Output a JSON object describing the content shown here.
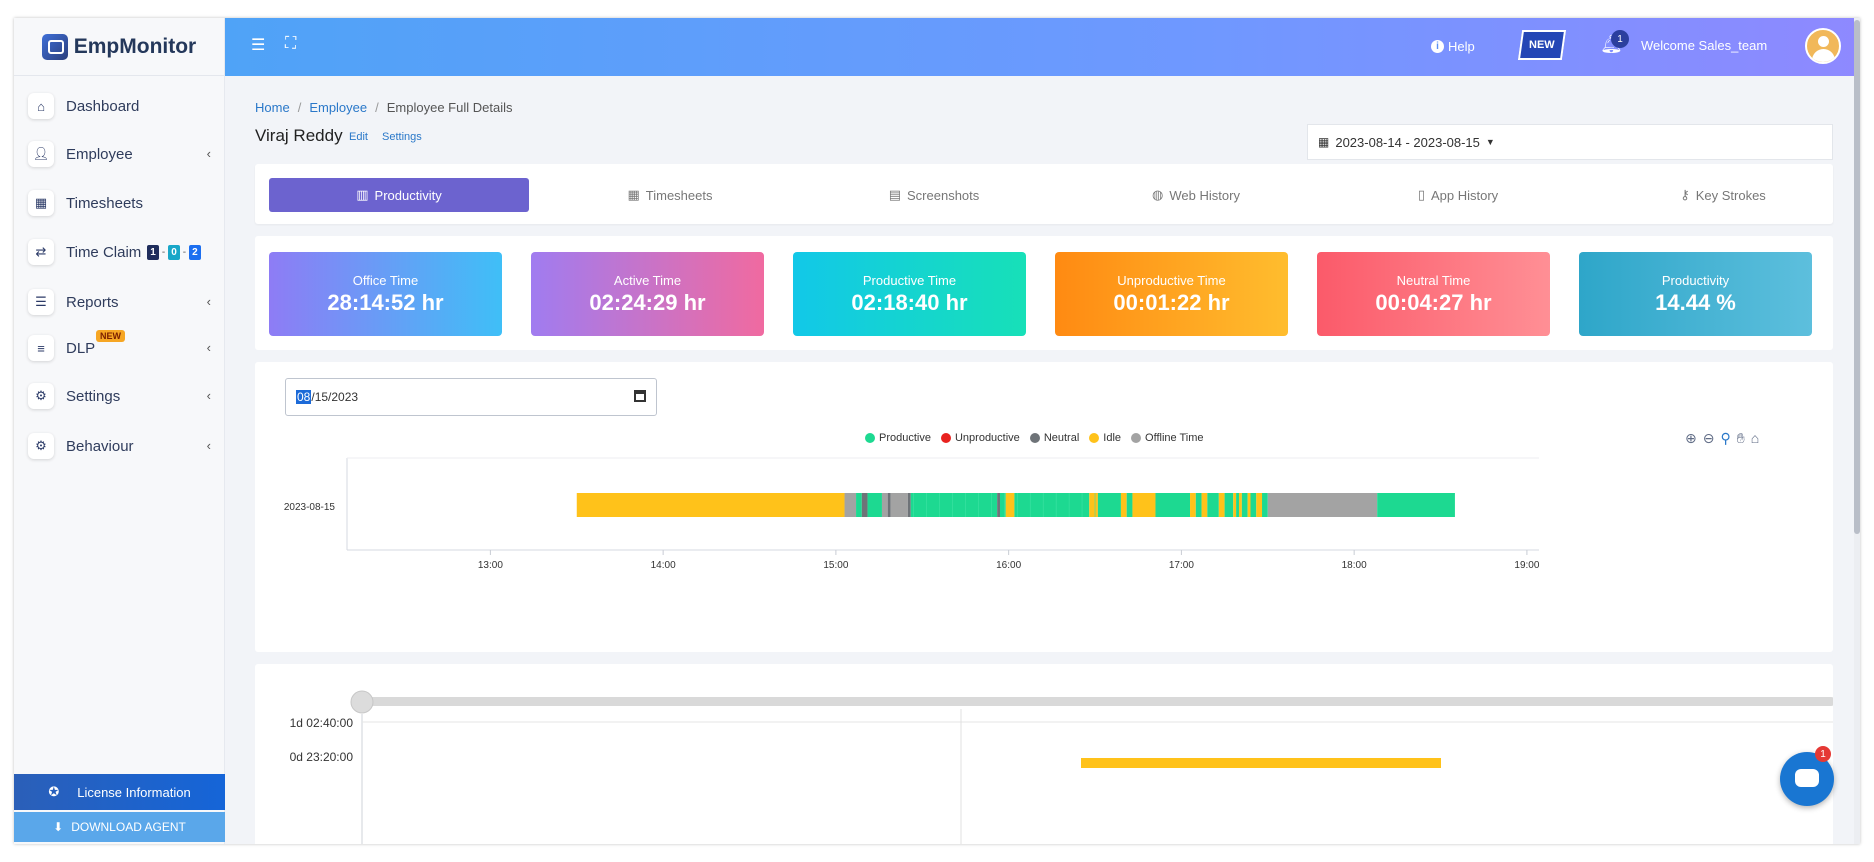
{
  "app": {
    "logo_text": "EmpMonitor"
  },
  "sidebar": {
    "items": [
      {
        "label": "Dashboard",
        "icon": "home-icon"
      },
      {
        "label": "Employee",
        "icon": "employee-icon",
        "caret": "‹"
      },
      {
        "label": "Timesheets",
        "icon": "calendar-icon"
      },
      {
        "label": "Time Claim",
        "icon": "swap-icon",
        "badges": [
          "1",
          "0",
          "2"
        ]
      },
      {
        "label": "Reports",
        "icon": "report-icon",
        "caret": "‹"
      },
      {
        "label": "DLP",
        "icon": "sliders-icon",
        "caret": "‹",
        "tag": "NEW"
      },
      {
        "label": "Settings",
        "icon": "gear-icon",
        "caret": "‹"
      },
      {
        "label": "Behaviour",
        "icon": "user-gear-icon",
        "caret": "‹"
      }
    ],
    "license_label": "License Information",
    "download_label": "DOWNLOAD AGENT"
  },
  "header": {
    "help_label": "Help",
    "new_label": "NEW",
    "notification_count": "1",
    "welcome": "Welcome  Sales_team"
  },
  "page": {
    "breadcrumb": [
      "Home",
      "Employee",
      "Employee Full Details"
    ],
    "employee_name": "Viraj Reddy",
    "edit_label": "Edit",
    "settings_label": "Settings",
    "date_range": "2023-08-14 - 2023-08-15"
  },
  "tabs": [
    {
      "label": "Productivity",
      "icon": "bar-chart-icon",
      "active": true
    },
    {
      "label": "Timesheets",
      "icon": "calendar-icon"
    },
    {
      "label": "Screenshots",
      "icon": "images-icon"
    },
    {
      "label": "Web History",
      "icon": "globe-icon"
    },
    {
      "label": "App History",
      "icon": "mobile-icon"
    },
    {
      "label": "Key Strokes",
      "icon": "key-icon"
    }
  ],
  "stats": [
    {
      "label": "Office Time",
      "value": "28:14:52 hr",
      "colors": [
        "#8e7cf5",
        "#3fbff7"
      ]
    },
    {
      "label": "Active Time",
      "value": "02:24:29 hr",
      "colors": [
        "#a07cf0",
        "#f06aa0"
      ]
    },
    {
      "label": "Productive Time",
      "value": "02:18:40 hr",
      "colors": [
        "#12c8e8",
        "#17e0b8"
      ]
    },
    {
      "label": "Unproductive Time",
      "value": "00:01:22 hr",
      "colors": [
        "#ff8a12",
        "#ffbd2e"
      ]
    },
    {
      "label": "Neutral Time",
      "value": "00:04:27 hr",
      "colors": [
        "#fb5a6a",
        "#ff8f95"
      ]
    },
    {
      "label": "Productivity",
      "value": "14.44 %",
      "colors": [
        "#2ea6c9",
        "#5dbfdd"
      ]
    }
  ],
  "timeline": {
    "date_value": "08/15/2023",
    "date_selected_part": "08",
    "date_rest": "/15/2023",
    "legend": [
      {
        "label": "Productive",
        "color": "#1dd991"
      },
      {
        "label": "Unproductive",
        "color": "#e8221f"
      },
      {
        "label": "Neutral",
        "color": "#6e7378"
      },
      {
        "label": "Idle",
        "color": "#ffc21a"
      },
      {
        "label": "Offline Time",
        "color": "#a3a3a3"
      }
    ],
    "row_label": "2023-08-15",
    "x_ticks": [
      "13:00",
      "14:00",
      "15:00",
      "16:00",
      "17:00",
      "18:00",
      "19:00"
    ],
    "segments": [
      {
        "start": "13:30",
        "end": "15:03",
        "type": "Idle"
      },
      {
        "start": "15:03",
        "end": "15:07",
        "type": "Offline Time"
      },
      {
        "start": "15:07",
        "end": "15:09",
        "type": "Productive"
      },
      {
        "start": "15:09",
        "end": "15:11",
        "type": "Neutral"
      },
      {
        "start": "15:11",
        "end": "15:16",
        "type": "Productive"
      },
      {
        "start": "15:16",
        "end": "15:18",
        "type": "Offline Time"
      },
      {
        "start": "15:18",
        "end": "15:19",
        "type": "Neutral"
      },
      {
        "start": "15:19",
        "end": "15:25",
        "type": "Offline Time"
      },
      {
        "start": "15:25",
        "end": "15:26",
        "type": "Neutral"
      },
      {
        "start": "15:26",
        "end": "15:56",
        "type": "Productive"
      },
      {
        "start": "15:56",
        "end": "15:57",
        "type": "Neutral"
      },
      {
        "start": "15:57",
        "end": "15:59",
        "type": "Productive"
      },
      {
        "start": "15:59",
        "end": "16:02",
        "type": "Idle"
      },
      {
        "start": "16:02",
        "end": "16:28",
        "type": "Productive"
      },
      {
        "start": "16:28",
        "end": "16:31",
        "type": "Idle"
      },
      {
        "start": "16:31",
        "end": "16:39",
        "type": "Productive"
      },
      {
        "start": "16:39",
        "end": "16:41",
        "type": "Idle"
      },
      {
        "start": "16:41",
        "end": "16:43",
        "type": "Productive"
      },
      {
        "start": "16:43",
        "end": "16:51",
        "type": "Idle"
      },
      {
        "start": "16:51",
        "end": "17:03",
        "type": "Productive"
      },
      {
        "start": "17:03",
        "end": "17:05",
        "type": "Idle"
      },
      {
        "start": "17:05",
        "end": "17:07",
        "type": "Productive"
      },
      {
        "start": "17:07",
        "end": "17:09",
        "type": "Idle"
      },
      {
        "start": "17:09",
        "end": "17:13",
        "type": "Productive"
      },
      {
        "start": "17:13",
        "end": "17:15",
        "type": "Idle"
      },
      {
        "start": "17:15",
        "end": "17:18",
        "type": "Productive"
      },
      {
        "start": "17:18",
        "end": "17:19",
        "type": "Idle"
      },
      {
        "start": "17:19",
        "end": "17:20",
        "type": "Productive"
      },
      {
        "start": "17:20",
        "end": "17:21",
        "type": "Idle"
      },
      {
        "start": "17:21",
        "end": "17:23",
        "type": "Productive"
      },
      {
        "start": "17:23",
        "end": "17:24",
        "type": "Idle"
      },
      {
        "start": "17:24",
        "end": "17:26",
        "type": "Productive"
      },
      {
        "start": "17:26",
        "end": "17:28",
        "type": "Idle"
      },
      {
        "start": "17:28",
        "end": "17:30",
        "type": "Productive"
      },
      {
        "start": "17:30",
        "end": "18:08",
        "type": "Offline Time"
      },
      {
        "start": "18:08",
        "end": "18:35",
        "type": "Productive"
      }
    ]
  },
  "lower_chart": {
    "y_labels": [
      "1d 02:40:00",
      "0d 23:20:00"
    ]
  },
  "chat": {
    "count": "1"
  }
}
